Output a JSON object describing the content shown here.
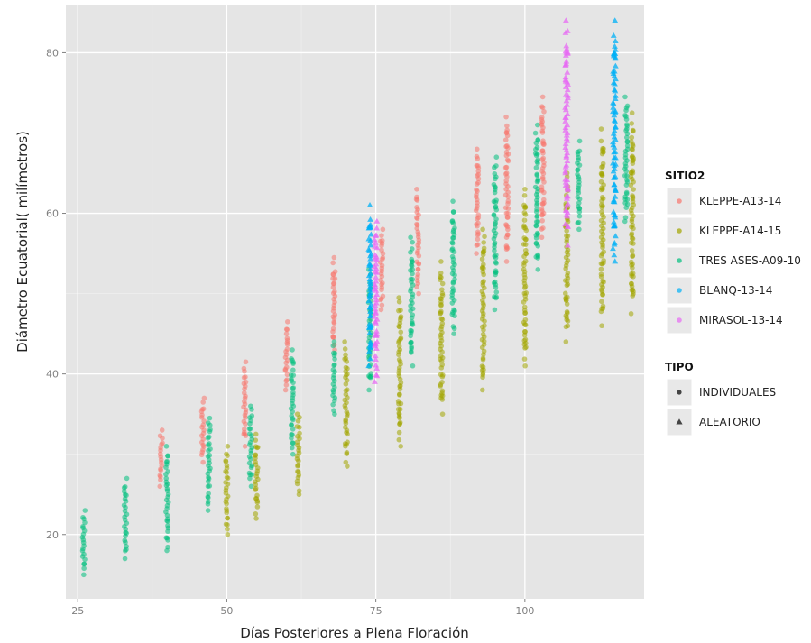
{
  "chart_data": {
    "type": "scatter",
    "title": "",
    "xlabel": "Días Posteriores a Plena Floración",
    "ylabel": "Diámetro Ecuatorial( milímetros)",
    "xlim": [
      23,
      120
    ],
    "ylim": [
      12,
      86
    ],
    "xticks": [
      25,
      50,
      75,
      100
    ],
    "yticks": [
      20,
      40,
      60,
      80
    ],
    "grid": true,
    "legend_position": "right",
    "legend_color": {
      "title": "SITIO2",
      "entries": [
        {
          "name": "KLEPPE-A13-14",
          "color": "#F8766D"
        },
        {
          "name": "KLEPPE-A14-15",
          "color": "#A3A500"
        },
        {
          "name": "TRES ASES-A09-10",
          "color": "#00BF7D"
        },
        {
          "name": "BLANQ-13-14",
          "color": "#00B0F6"
        },
        {
          "name": "MIRASOL-13-14",
          "color": "#E76BF3"
        }
      ]
    },
    "legend_shape": {
      "title": "TIPO",
      "entries": [
        {
          "name": "INDIVIDUALES",
          "shape": "circle"
        },
        {
          "name": "ALEATORIO",
          "shape": "triangle"
        }
      ]
    },
    "series": [
      {
        "name": "KLEPPE-A13-14",
        "color": "#F8766D",
        "shape": "circle",
        "points": [
          {
            "x": 39,
            "ymin": 26,
            "ymax": 33
          },
          {
            "x": 46,
            "ymin": 29,
            "ymax": 37
          },
          {
            "x": 53,
            "ymin": 31,
            "ymax": 41.5
          },
          {
            "x": 60,
            "ymin": 38,
            "ymax": 46.5
          },
          {
            "x": 68,
            "ymin": 43,
            "ymax": 54.5
          },
          {
            "x": 76,
            "ymin": 48,
            "ymax": 58
          },
          {
            "x": 82,
            "ymin": 50,
            "ymax": 63
          },
          {
            "x": 92,
            "ymin": 55,
            "ymax": 68
          },
          {
            "x": 97,
            "ymin": 54,
            "ymax": 72
          },
          {
            "x": 103,
            "ymin": 57,
            "ymax": 74.5
          }
        ]
      },
      {
        "name": "KLEPPE-A14-15",
        "color": "#A3A500",
        "shape": "circle",
        "points": [
          {
            "x": 50,
            "ymin": 20,
            "ymax": 31
          },
          {
            "x": 55,
            "ymin": 22,
            "ymax": 32.5
          },
          {
            "x": 62,
            "ymin": 25,
            "ymax": 35
          },
          {
            "x": 70,
            "ymin": 28.5,
            "ymax": 44
          },
          {
            "x": 79,
            "ymin": 31,
            "ymax": 49.5
          },
          {
            "x": 86,
            "ymin": 35,
            "ymax": 54
          },
          {
            "x": 93,
            "ymin": 38,
            "ymax": 58
          },
          {
            "x": 100,
            "ymin": 41,
            "ymax": 63
          },
          {
            "x": 107,
            "ymin": 44,
            "ymax": 65
          },
          {
            "x": 113,
            "ymin": 46,
            "ymax": 70.5
          },
          {
            "x": 118,
            "ymin": 47.5,
            "ymax": 72.5
          }
        ]
      },
      {
        "name": "TRES ASES-A09-10",
        "color": "#00BF7D",
        "shape": "circle",
        "points": [
          {
            "x": 26,
            "ymin": 15,
            "ymax": 23
          },
          {
            "x": 33,
            "ymin": 17,
            "ymax": 27
          },
          {
            "x": 40,
            "ymin": 18,
            "ymax": 31
          },
          {
            "x": 47,
            "ymin": 23,
            "ymax": 34.5
          },
          {
            "x": 54,
            "ymin": 26,
            "ymax": 36
          },
          {
            "x": 61,
            "ymin": 30,
            "ymax": 43
          },
          {
            "x": 68,
            "ymin": 35,
            "ymax": 44
          },
          {
            "x": 74,
            "ymin": 38,
            "ymax": 53
          },
          {
            "x": 81,
            "ymin": 41,
            "ymax": 57
          },
          {
            "x": 88,
            "ymin": 45,
            "ymax": 61.5
          },
          {
            "x": 95,
            "ymin": 48,
            "ymax": 67
          },
          {
            "x": 102,
            "ymin": 53,
            "ymax": 71
          },
          {
            "x": 109,
            "ymin": 58,
            "ymax": 69
          },
          {
            "x": 117,
            "ymin": 59,
            "ymax": 74.5
          }
        ]
      },
      {
        "name": "BLANQ-13-14",
        "color": "#00B0F6",
        "shape": "triangle",
        "points": [
          {
            "x": 74,
            "ymin": 41,
            "ymax": 61
          },
          {
            "x": 115,
            "ymin": 54,
            "ymax": 84
          }
        ]
      },
      {
        "name": "MIRASOL-13-14",
        "color": "#E76BF3",
        "shape": "triangle",
        "points": [
          {
            "x": 75,
            "ymin": 39,
            "ymax": 59
          },
          {
            "x": 107,
            "ymin": 56,
            "ymax": 84
          }
        ]
      }
    ]
  }
}
